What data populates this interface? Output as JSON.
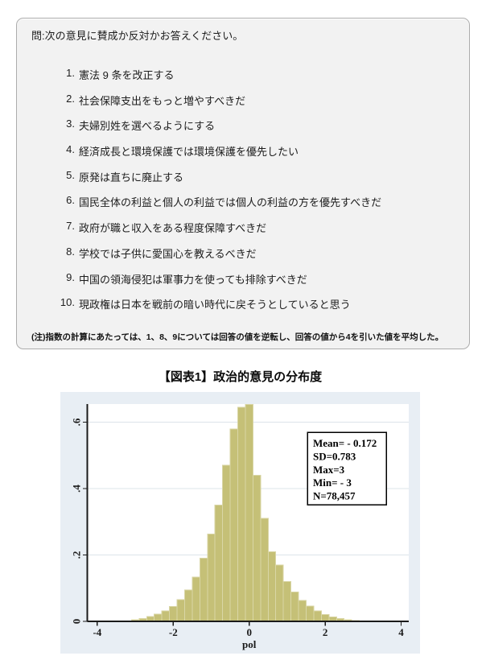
{
  "question": {
    "prompt": "問:次の意見に賛成か反対かお答えください。",
    "items": [
      {
        "num": "1.",
        "text": "憲法 9 条を改正する"
      },
      {
        "num": "2.",
        "text": "社会保障支出をもっと増やすべきだ"
      },
      {
        "num": "3.",
        "text": "夫婦別姓を選べるようにする"
      },
      {
        "num": "4.",
        "text": "経済成長と環境保護では環境保護を優先したい"
      },
      {
        "num": "5.",
        "text": "原発は直ちに廃止する"
      },
      {
        "num": "6.",
        "text": "国民全体の利益と個人の利益では個人の利益の方を優先すべきだ"
      },
      {
        "num": "7.",
        "text": "政府が職と収入をある程度保障すべきだ"
      },
      {
        "num": "8.",
        "text": "学校では子供に愛国心を教えるべきだ"
      },
      {
        "num": "9.",
        "text": "中国の領海侵犯は軍事力を使っても排除すべきだ"
      },
      {
        "num": "10.",
        "text": "現政権は日本を戦前の暗い時代に戻そうとしていると思う"
      }
    ],
    "note": "(注)指数の計算にあたっては、1、8、9については回答の値を逆転し、回答の値から4を引いた値を平均した。"
  },
  "figure": {
    "title": "【図表1】政治的意見の分布度"
  },
  "chart_data": {
    "type": "bar",
    "subtype": "histogram",
    "title": "【図表1】政治的意見の分布度",
    "xlabel": "pol",
    "ylabel": "",
    "xlim": [
      -4.27,
      4.2
    ],
    "ylim": [
      0,
      0.655
    ],
    "grid": "horizontal",
    "x_ticks": [
      -4,
      -2,
      0,
      2,
      4
    ],
    "y_ticks": [
      0,
      0.2,
      0.4,
      0.6
    ],
    "y_tick_labels": [
      "0",
      ".2",
      ".4",
      ".6"
    ],
    "bin_width": 0.2,
    "bin_centers": [
      -3.0,
      -2.8,
      -2.6,
      -2.4,
      -2.2,
      -2.0,
      -1.8,
      -1.6,
      -1.4,
      -1.2,
      -1.0,
      -0.8,
      -0.6,
      -0.4,
      -0.2,
      0.0,
      0.2,
      0.4,
      0.6,
      0.8,
      1.0,
      1.2,
      1.4,
      1.6,
      1.8,
      2.0,
      2.2,
      2.4,
      2.6,
      2.8,
      3.0
    ],
    "densities": [
      0.005,
      0.009,
      0.014,
      0.022,
      0.032,
      0.045,
      0.065,
      0.095,
      0.133,
      0.19,
      0.263,
      0.35,
      0.47,
      0.58,
      0.645,
      0.653,
      0.44,
      0.31,
      0.21,
      0.17,
      0.12,
      0.088,
      0.063,
      0.046,
      0.031,
      0.021,
      0.013,
      0.008,
      0.005,
      0.003,
      0.0015
    ],
    "stats_box": [
      "Mean= - 0.172",
      "SD=0.783",
      "Max=3",
      "Min= - 3",
      "N=78,457"
    ],
    "colors": {
      "bar_fill": "#c5c077",
      "bar_outline": "#d9d6a6",
      "graph_region": "#e8eef4",
      "plot_region": "#ffffff",
      "gridline": "#dce4ea",
      "axis": "#1a1a1a",
      "stats_border": "#000000",
      "text": "#1a1a1a"
    }
  }
}
